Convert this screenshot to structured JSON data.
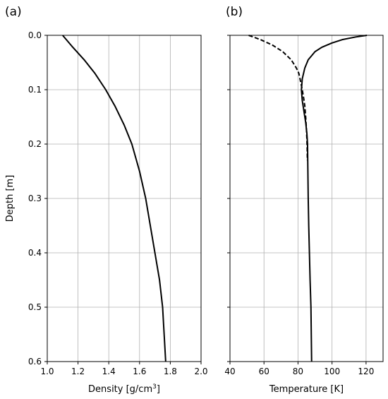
{
  "chart_data": [
    {
      "type": "line",
      "panel_label": "(a)",
      "xlabel_main": "Density [g/cm",
      "xlabel_sup": "3",
      "xlabel_end": "]",
      "ylabel": "Depth [m]",
      "xlim": [
        1.0,
        2.0
      ],
      "ylim": [
        0.6,
        0.0
      ],
      "y_inverted": true,
      "grid": true,
      "xticks": [
        1.0,
        1.2,
        1.4,
        1.6,
        1.8,
        2.0
      ],
      "xtick_labels": [
        "1.0",
        "1.2",
        "1.4",
        "1.6",
        "1.8",
        "2.0"
      ],
      "yticks": [
        0.0,
        0.1,
        0.2,
        0.3,
        0.4,
        0.5,
        0.6
      ],
      "ytick_labels": [
        "0.0",
        "0.1",
        "0.2",
        "0.3",
        "0.4",
        "0.5",
        "0.6"
      ],
      "series": [
        {
          "style": "solid",
          "color": "#000000",
          "x": [
            1.1,
            1.16,
            1.24,
            1.31,
            1.38,
            1.44,
            1.5,
            1.55,
            1.6,
            1.64,
            1.67,
            1.7,
            1.73,
            1.75,
            1.76,
            1.77
          ],
          "y": [
            0.0,
            0.02,
            0.045,
            0.07,
            0.1,
            0.13,
            0.165,
            0.2,
            0.25,
            0.3,
            0.35,
            0.4,
            0.45,
            0.5,
            0.55,
            0.6
          ]
        }
      ]
    },
    {
      "type": "line",
      "panel_label": "(b)",
      "xlabel": "Temperature [K]",
      "xlim": [
        40,
        130
      ],
      "ylim": [
        0.6,
        0.0
      ],
      "y_inverted": true,
      "grid": true,
      "xticks": [
        40,
        60,
        80,
        100,
        120
      ],
      "xtick_labels": [
        "40",
        "60",
        "80",
        "100",
        "120"
      ],
      "yticks": [
        0.0,
        0.1,
        0.2,
        0.3,
        0.4,
        0.5,
        0.6
      ],
      "series": [
        {
          "style": "solid",
          "color": "#000000",
          "x": [
            120.5,
            114,
            106,
            100,
            94,
            90,
            86,
            84,
            82.5,
            82,
            82.5,
            83.5,
            84.5,
            85.2,
            85.6,
            85.8,
            86.0,
            86.3,
            86.7,
            87.1,
            87.6,
            88.0
          ],
          "y": [
            0.0,
            0.003,
            0.008,
            0.014,
            0.022,
            0.03,
            0.045,
            0.06,
            0.08,
            0.1,
            0.12,
            0.14,
            0.16,
            0.18,
            0.2,
            0.25,
            0.3,
            0.35,
            0.4,
            0.45,
            0.5,
            0.6
          ]
        },
        {
          "style": "dashed",
          "color": "#000000",
          "x": [
            51,
            58,
            65,
            71,
            76,
            79,
            80.5,
            81.5,
            82.5,
            83.3,
            84.0,
            84.5,
            84.9,
            85.2,
            85.4,
            85.5
          ],
          "y": [
            0.0,
            0.008,
            0.018,
            0.03,
            0.045,
            0.06,
            0.07,
            0.085,
            0.1,
            0.115,
            0.13,
            0.15,
            0.17,
            0.19,
            0.21,
            0.23
          ]
        }
      ]
    }
  ]
}
